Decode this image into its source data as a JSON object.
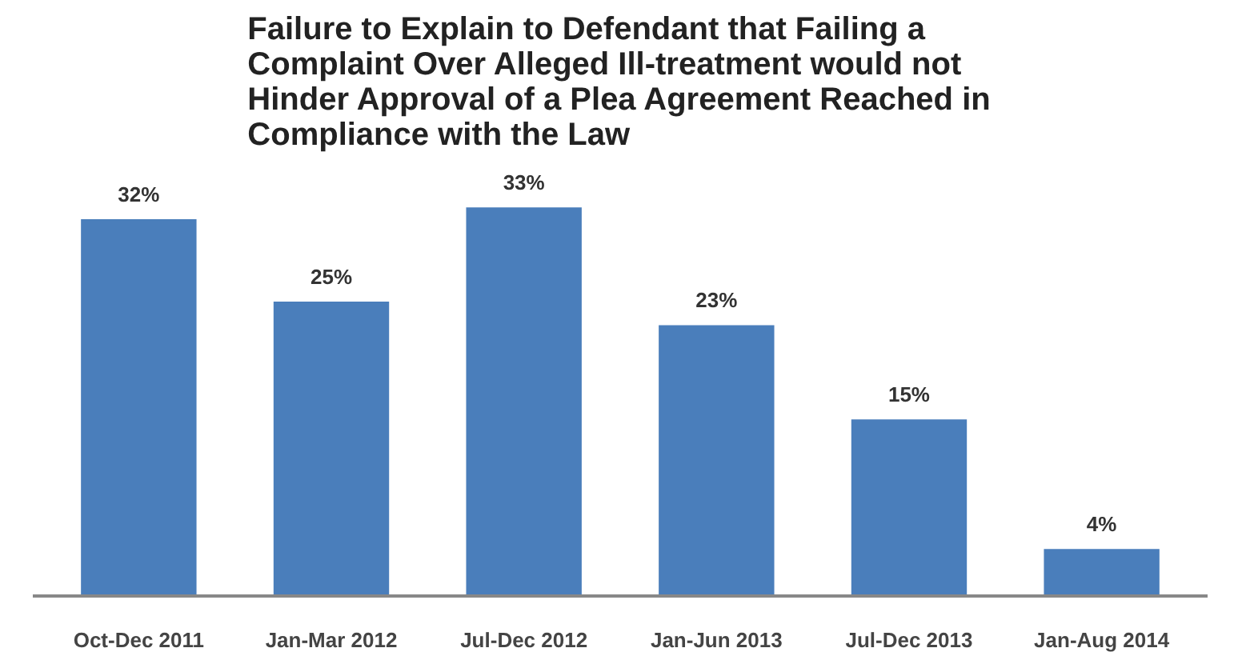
{
  "chart_data": {
    "type": "bar",
    "title": "Failure to Explain to Defendant that Failing a Complaint Over Alleged Ill-treatment would not Hinder Approval of a Plea Agreement Reached in Compliance with the Law",
    "categories": [
      "Oct-Dec 2011",
      "Jan-Mar 2012",
      "Jul-Dec 2012",
      "Jan-Jun 2013",
      "Jul-Dec 2013",
      "Jan-Aug 2014"
    ],
    "values": [
      32,
      25,
      33,
      23,
      15,
      4
    ],
    "value_labels": [
      "32%",
      "25%",
      "33%",
      "23%",
      "15%",
      "4%"
    ],
    "color": "#4a7ebb",
    "grid": false
  }
}
